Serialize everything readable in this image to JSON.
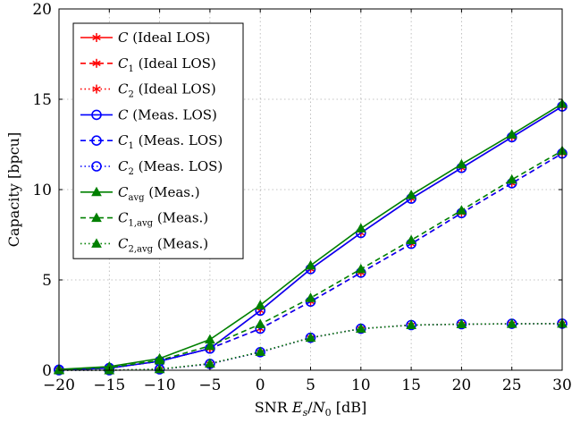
{
  "chart_data": {
    "type": "line",
    "title": "",
    "xlabel": "SNR E_s/N_0 [dB]",
    "ylabel": "Capacity [bpcu]",
    "xlim": [
      -20,
      30
    ],
    "ylim": [
      0,
      20
    ],
    "xticks": [
      "−20",
      "−15",
      "−10",
      "−5",
      "0",
      "5",
      "10",
      "15",
      "20",
      "25",
      "30"
    ],
    "yticks": [
      "0",
      "5",
      "10",
      "15",
      "20"
    ],
    "grid": true,
    "legend_position": "top-left",
    "x": [
      -20,
      -15,
      -10,
      -5,
      0,
      5,
      10,
      15,
      20,
      25,
      30
    ],
    "series": [
      {
        "name": "C (Ideal LOS)",
        "color": "#ff0000",
        "line": "solid",
        "marker": "asterisk",
        "values": [
          0.03,
          0.12,
          0.5,
          1.2,
          3.3,
          5.6,
          7.6,
          9.5,
          11.2,
          12.9,
          14.6
        ]
      },
      {
        "name": "C1 (Ideal LOS)",
        "color": "#ff0000",
        "line": "dashed",
        "marker": "asterisk",
        "values": [
          0.02,
          0.12,
          0.5,
          1.2,
          2.3,
          3.8,
          5.4,
          7.0,
          8.7,
          10.35,
          12.0
        ]
      },
      {
        "name": "C2 (Ideal LOS)",
        "color": "#ff0000",
        "line": "dotted",
        "marker": "asterisk",
        "values": [
          0.0,
          0.0,
          0.05,
          0.35,
          1.0,
          1.8,
          2.3,
          2.5,
          2.55,
          2.57,
          2.58
        ]
      },
      {
        "name": "C (Meas. LOS)",
        "color": "#0000ff",
        "line": "solid",
        "marker": "circle",
        "values": [
          0.03,
          0.12,
          0.5,
          1.2,
          3.3,
          5.6,
          7.6,
          9.5,
          11.2,
          12.9,
          14.6
        ]
      },
      {
        "name": "C1 (Meas. LOS)",
        "color": "#0000ff",
        "line": "dashed",
        "marker": "circle",
        "values": [
          0.02,
          0.12,
          0.5,
          1.2,
          2.3,
          3.8,
          5.4,
          7.0,
          8.7,
          10.35,
          12.0
        ]
      },
      {
        "name": "C2 (Meas. LOS)",
        "color": "#0000ff",
        "line": "dotted",
        "marker": "circle",
        "values": [
          0.0,
          0.0,
          0.05,
          0.35,
          1.0,
          1.8,
          2.3,
          2.5,
          2.55,
          2.57,
          2.58
        ]
      },
      {
        "name": "C_avg (Meas.)",
        "color": "#008000",
        "line": "solid",
        "marker": "triangle",
        "values": [
          0.05,
          0.2,
          0.65,
          1.7,
          3.6,
          5.8,
          7.85,
          9.7,
          11.4,
          13.05,
          14.75
        ]
      },
      {
        "name": "C_1,avg (Meas.)",
        "color": "#008000",
        "line": "dashed",
        "marker": "triangle",
        "values": [
          0.03,
          0.15,
          0.55,
          1.35,
          2.55,
          4.0,
          5.6,
          7.2,
          8.85,
          10.55,
          12.15
        ]
      },
      {
        "name": "C_2,avg (Meas.)",
        "color": "#008000",
        "line": "dotted",
        "marker": "triangle",
        "values": [
          0.0,
          0.0,
          0.06,
          0.37,
          1.02,
          1.8,
          2.3,
          2.5,
          2.55,
          2.57,
          2.58
        ]
      }
    ],
    "legend_items": [
      {
        "sym": "C",
        "sub": "",
        "ctx": "(Ideal LOS)"
      },
      {
        "sym": "C",
        "sub": "1",
        "ctx": "(Ideal LOS)"
      },
      {
        "sym": "C",
        "sub": "2",
        "ctx": "(Ideal LOS)"
      },
      {
        "sym": "C",
        "sub": "",
        "ctx": "(Meas. LOS)"
      },
      {
        "sym": "C",
        "sub": "1",
        "ctx": "(Meas. LOS)"
      },
      {
        "sym": "C",
        "sub": "2",
        "ctx": "(Meas. LOS)"
      },
      {
        "sym": "C",
        "sub": "avg",
        "ctx": "(Meas.)"
      },
      {
        "sym": "C",
        "sub": "1,avg",
        "ctx": "(Meas.)"
      },
      {
        "sym": "C",
        "sub": "2,avg",
        "ctx": "(Meas.)"
      }
    ]
  }
}
